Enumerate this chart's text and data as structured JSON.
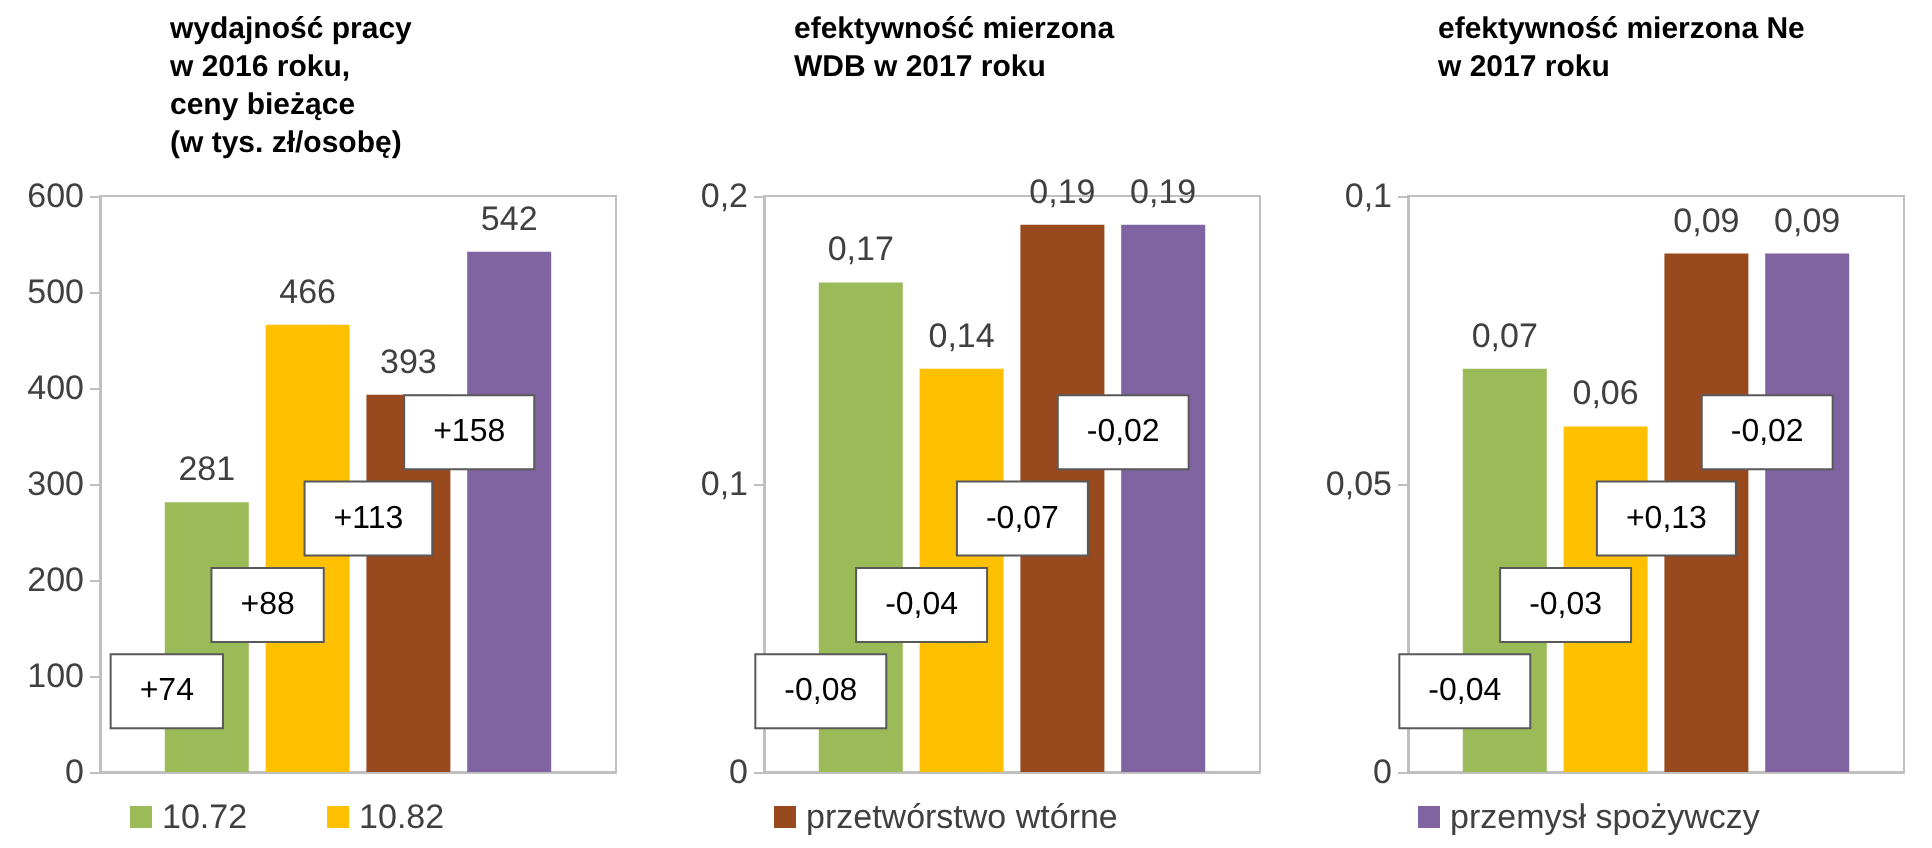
{
  "chart_data": [
    {
      "type": "bar",
      "title": "wydajność pracy\nw 2016 roku,\nceny bieżące\n(w tys. zł/osobę)",
      "categories": [
        null
      ],
      "series": [
        {
          "name": "10.72",
          "color": "#9bbb59",
          "values": [
            281
          ]
        },
        {
          "name": "10.82",
          "color": "#ffc000",
          "values": [
            466
          ]
        },
        {
          "color": "#984a1e",
          "values": [
            393
          ]
        },
        {
          "color": "#8064a2",
          "values": [
            542
          ]
        }
      ],
      "ylim": [
        0,
        600
      ],
      "yticks": [
        0,
        100,
        200,
        300,
        400,
        500,
        600
      ],
      "data_labels": true,
      "legend": "bottom",
      "annotations": [
        "+74",
        "+88",
        "+113",
        "+158"
      ]
    },
    {
      "type": "bar",
      "title": "efektywność mierzona\nWDB w 2017 roku",
      "categories": [
        null
      ],
      "series": [
        {
          "color": "#9bbb59",
          "values": [
            0.17
          ],
          "value_labels": [
            "0,17"
          ]
        },
        {
          "color": "#ffc000",
          "values": [
            0.14
          ],
          "value_labels": [
            "0,14"
          ]
        },
        {
          "name": "przetwórstwo wtórne",
          "color": "#984a1e",
          "values": [
            0.19
          ],
          "value_labels": [
            "0,19"
          ]
        },
        {
          "color": "#8064a2",
          "values": [
            0.19
          ],
          "value_labels": [
            "0,19"
          ]
        }
      ],
      "ylim": [
        0,
        0.2
      ],
      "yticks": [
        0,
        {
          "value": 0.1,
          "label": "0,1"
        },
        {
          "value": 0.2,
          "label": "0,2"
        }
      ],
      "legend": "bottom",
      "annotations": [
        "-0,08",
        "-0,04",
        "-0,07",
        "-0,02"
      ]
    },
    {
      "type": "bar",
      "title": "efektywność mierzona Ne\nw 2017 roku",
      "categories": [
        null
      ],
      "series": [
        {
          "color": "#9bbb59",
          "values": [
            0.07
          ],
          "value_labels": [
            "0,07"
          ]
        },
        {
          "color": "#ffc000",
          "values": [
            0.06
          ],
          "value_labels": [
            "0,06"
          ]
        },
        {
          "color": "#984a1e",
          "values": [
            0.09
          ],
          "value_labels": [
            "0,09"
          ]
        },
        {
          "name": "przemysł spożywczy",
          "color": "#8064a2",
          "values": [
            0.09
          ],
          "value_labels": [
            "0,09"
          ]
        }
      ],
      "ylim": [
        0,
        0.1
      ],
      "yticks": [
        0,
        {
          "value": 0.05,
          "label": "0,05"
        },
        {
          "value": 0.1,
          "label": "0,1"
        }
      ],
      "legend": "bottom",
      "annotations": [
        "-0,04",
        "-0,03",
        "+0,13",
        "-0,02"
      ]
    }
  ]
}
